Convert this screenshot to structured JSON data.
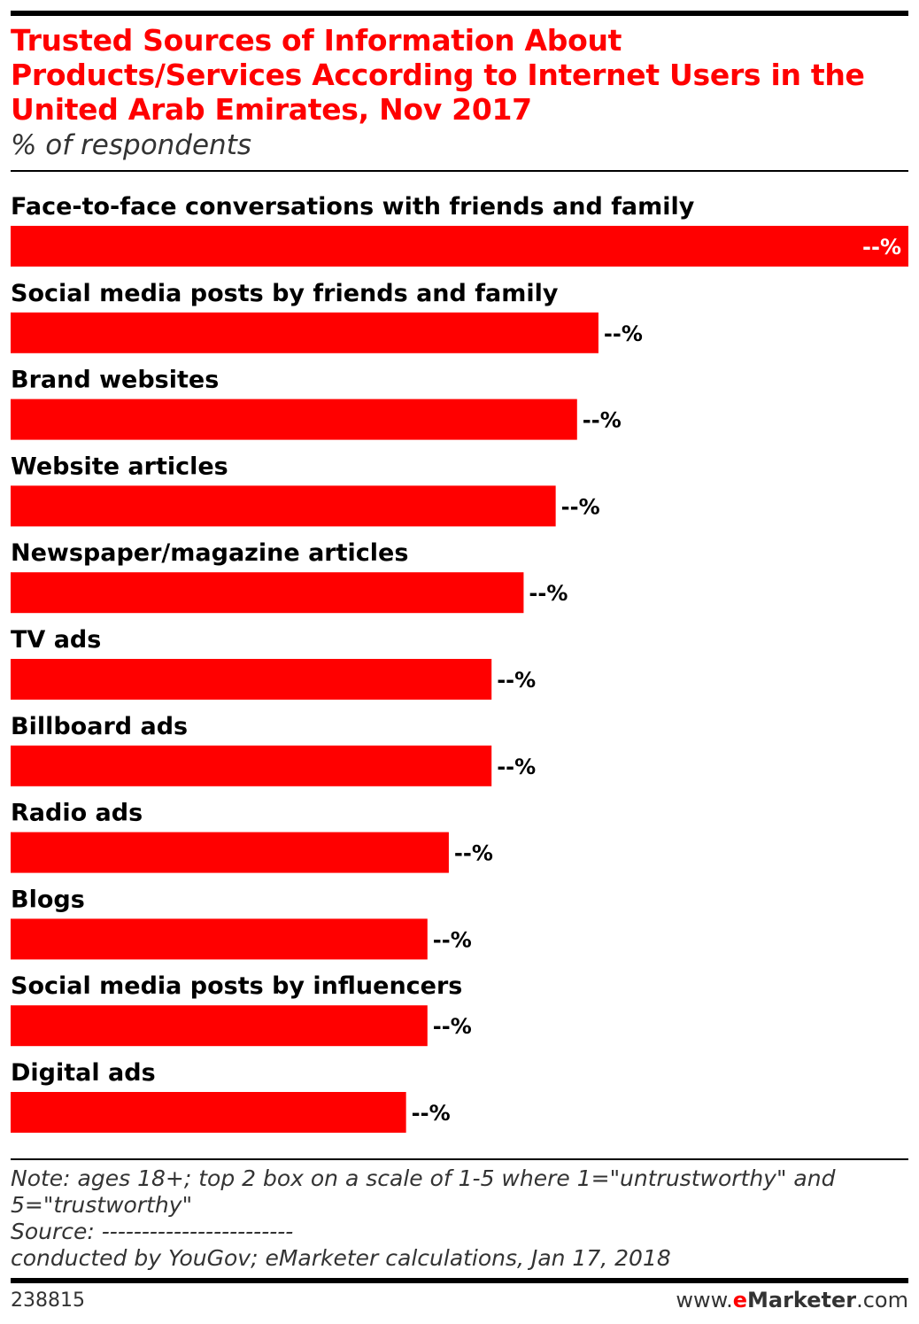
{
  "header": {
    "title": "Trusted Sources of Information About Products/Services According to Internet Users in the United Arab Emirates, Nov 2017",
    "subtitle": "% of respondents"
  },
  "chart_data": {
    "type": "bar",
    "orientation": "horizontal",
    "title": "Trusted Sources of Information About Products/Services According to Internet Users in the United Arab Emirates, Nov 2017",
    "subtitle": "% of respondents",
    "categories": [
      "Face-to-face conversations with friends and family",
      "Social media posts by friends and family",
      "Brand websites",
      "Website articles",
      "Newspaper/magazine articles",
      "TV ads",
      "Billboard ads",
      "Radio ads",
      "Blogs",
      "Social media posts by influencers",
      "Digital ads"
    ],
    "values": [
      84,
      55,
      53,
      51,
      48,
      45,
      45,
      41,
      39,
      39,
      37
    ],
    "value_labels": [
      "--%",
      "--%",
      "--%",
      "--%",
      "--%",
      "--%",
      "--%",
      "--%",
      "--%",
      "--%",
      "--%"
    ],
    "bar_color": "#ff0000",
    "xlim": [
      0,
      84
    ],
    "grid": false,
    "legend": "none"
  },
  "footer": {
    "note": "Note: ages 18+; top 2 box on a scale of 1-5 where 1=\"untrustworthy\" and 5=\"trustworthy\"",
    "source": "Source: ------------------------",
    "source_detail": "conducted by YouGov; eMarketer calculations, Jan 17, 2018",
    "chart_id": "238815",
    "brand_prefix": "www.",
    "brand_e": "e",
    "brand_name": "Marketer",
    "brand_suffix": ".com"
  }
}
